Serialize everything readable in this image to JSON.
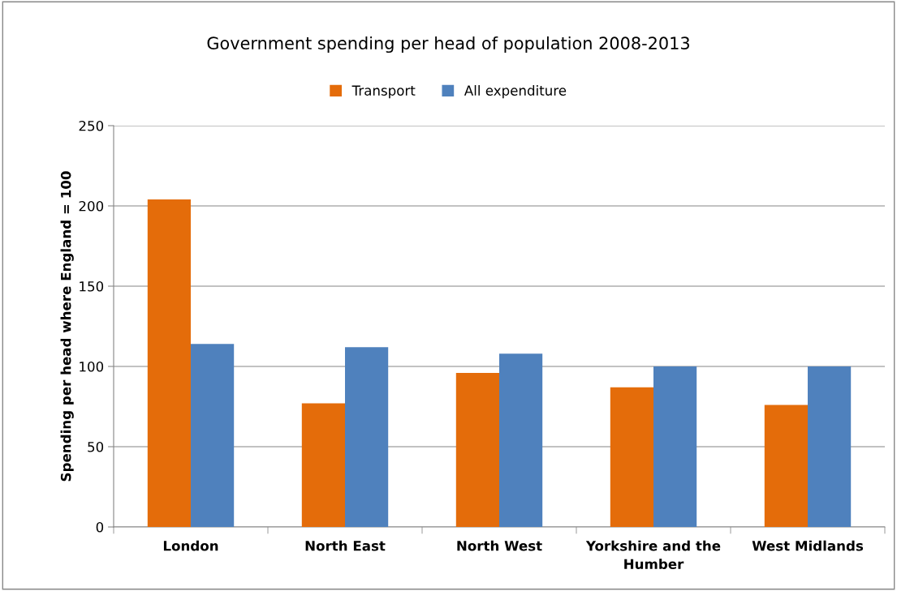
{
  "chart_data": {
    "type": "bar",
    "title": "Government spending per head of population 2008-2013",
    "ylabel": "Spending per head where England = 100",
    "categories": [
      "London",
      "North East",
      "North West",
      "Yorkshire and the Humber",
      "West Midlands"
    ],
    "series": [
      {
        "name": "Transport",
        "color": "#e46c0a",
        "values": [
          204,
          77,
          96,
          87,
          76
        ]
      },
      {
        "name": "All expenditure",
        "color": "#4f81bd",
        "values": [
          114,
          112,
          108,
          100,
          100
        ]
      }
    ],
    "ylim": [
      0,
      250
    ],
    "yticks": [
      0,
      50,
      100,
      150,
      200,
      250
    ],
    "grid": "y",
    "legend": "top"
  }
}
